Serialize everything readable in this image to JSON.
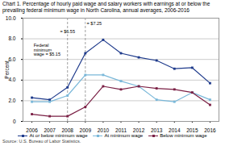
{
  "chart_data": {
    "type": "line",
    "title": "Chart 1. Percentage of hourly paid wage and salary workers with earnings at or below the prevailing federal minimum wage in North Carolina, annual averages, 2006-2016",
    "ylabel": "Percent",
    "x": [
      2006,
      2007,
      2008,
      2009,
      2010,
      2011,
      2012,
      2013,
      2014,
      2015,
      2016
    ],
    "xlim": [
      2005.5,
      2016.5
    ],
    "xticks": [
      2006,
      2007,
      2008,
      2009,
      2010,
      2011,
      2012,
      2013,
      2014,
      2015,
      2016
    ],
    "ylim": [
      0,
      10
    ],
    "yticks": [
      0,
      {
        "value": 2,
        "label": "2.0"
      },
      {
        "value": 4,
        "label": "4.0"
      },
      {
        "value": 6,
        "label": "6.0"
      },
      {
        "value": 8,
        "label": "8.0"
      },
      {
        "value": 10,
        "label": "10.0"
      }
    ],
    "grid": true,
    "legend": "bottom",
    "series": [
      {
        "name": "At or below minimum wage",
        "color": "#1f3b8c",
        "marker": "square",
        "values": [
          2.3,
          2.1,
          3.3,
          6.6,
          7.9,
          6.6,
          6.2,
          5.9,
          5.1,
          5.2,
          3.7
        ]
      },
      {
        "name": "At minimum wage",
        "color": "#7ab8d9",
        "marker": "square",
        "values": [
          1.9,
          1.9,
          2.5,
          4.5,
          4.5,
          3.9,
          3.4,
          2.1,
          1.9,
          2.8,
          2.1
        ]
      },
      {
        "name": "Below minimum wage",
        "color": "#7b2045",
        "marker": "square",
        "values": [
          0.7,
          0.5,
          0.5,
          1.4,
          3.4,
          3.1,
          3.4,
          3.2,
          3.1,
          2.8,
          1.6
        ]
      }
    ],
    "vlines": [
      2008,
      2009
    ],
    "annotations": [
      {
        "text": "= $6.55",
        "x": 2008,
        "y": 8.7
      },
      {
        "text": "= $7.25",
        "x": 2009.5,
        "y": 9.5
      },
      {
        "text": "Federal\nminimum\nwage = $5.15",
        "x": 2006.1,
        "y": 7.5
      }
    ],
    "source": "Source: U.S. Bureau of Labor Statistics."
  }
}
